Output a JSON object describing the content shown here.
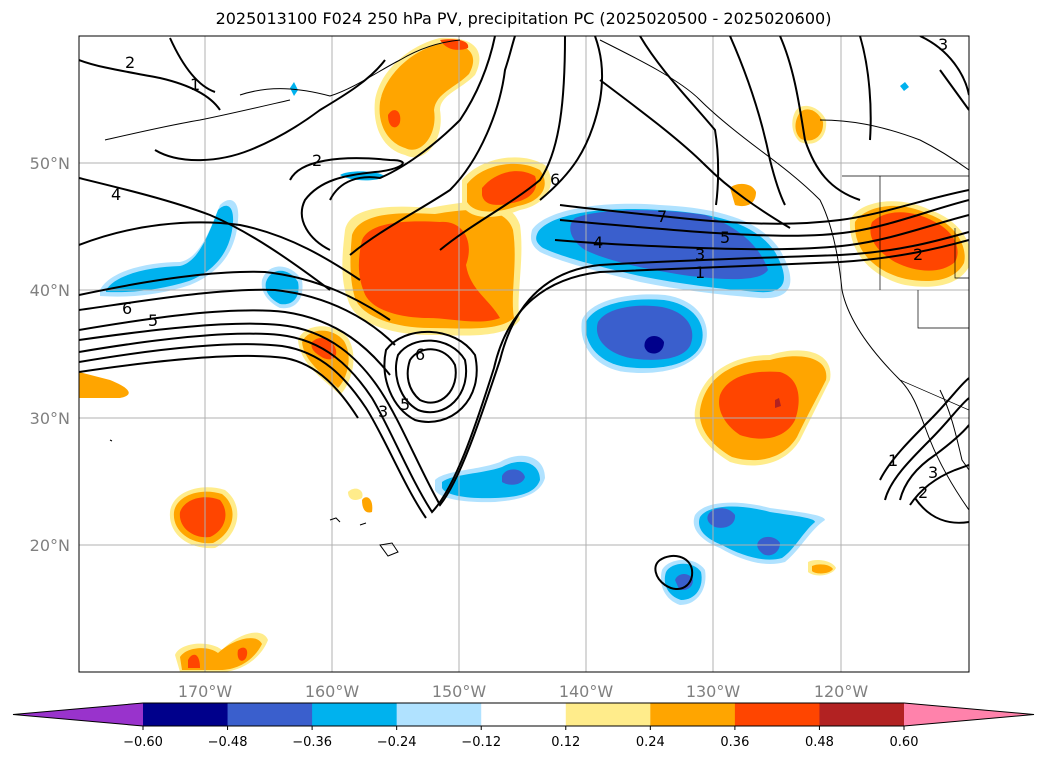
{
  "title": "2025013100 F024 250 hPa PV, precipitation PC (2025020500 - 2025020600)",
  "map": {
    "lon_range": [
      -180,
      -110
    ],
    "lat_range": [
      10,
      60
    ],
    "lon_ticks": [
      -170,
      -160,
      -150,
      -140,
      -130,
      -120
    ],
    "lon_tick_labels": [
      "170°W",
      "160°W",
      "150°W",
      "140°W",
      "130°W",
      "120°W"
    ],
    "lat_ticks": [
      20,
      30,
      40,
      50
    ],
    "lat_tick_labels": [
      "20°N",
      "30°N",
      "40°N",
      "50°N"
    ],
    "grid": true
  },
  "colorbar": {
    "boundaries": [
      -0.6,
      -0.48,
      -0.36,
      -0.24,
      -0.12,
      0.12,
      0.24,
      0.36,
      0.48,
      0.6
    ],
    "tick_labels": [
      "−0.60",
      "−0.48",
      "−0.36",
      "−0.24",
      "−0.12",
      "0.12",
      "0.24",
      "0.36",
      "0.48",
      "0.60"
    ],
    "colors": [
      "#9933cc",
      "#00008b",
      "#3a5fcd",
      "#00b2ee",
      "#b0e2ff",
      "#ffffff",
      "#ffec8b",
      "#ffa500",
      "#ff4500",
      "#b22222",
      "#ff82ab"
    ],
    "extend": "both"
  },
  "pv_contour_labels": [
    "2",
    "1",
    "2",
    "4",
    "6",
    "5",
    "3",
    "5",
    "6",
    "6",
    "7",
    "4",
    "3",
    "5",
    "1",
    "2",
    "1",
    "2",
    "3",
    "3"
  ],
  "shaded_fields": {
    "positive_colors": [
      "#ffec8b",
      "#ffa500",
      "#ff4500",
      "#b22222"
    ],
    "negative_colors": [
      "#b0e2ff",
      "#00b2ee",
      "#3a5fcd",
      "#00008b"
    ]
  }
}
